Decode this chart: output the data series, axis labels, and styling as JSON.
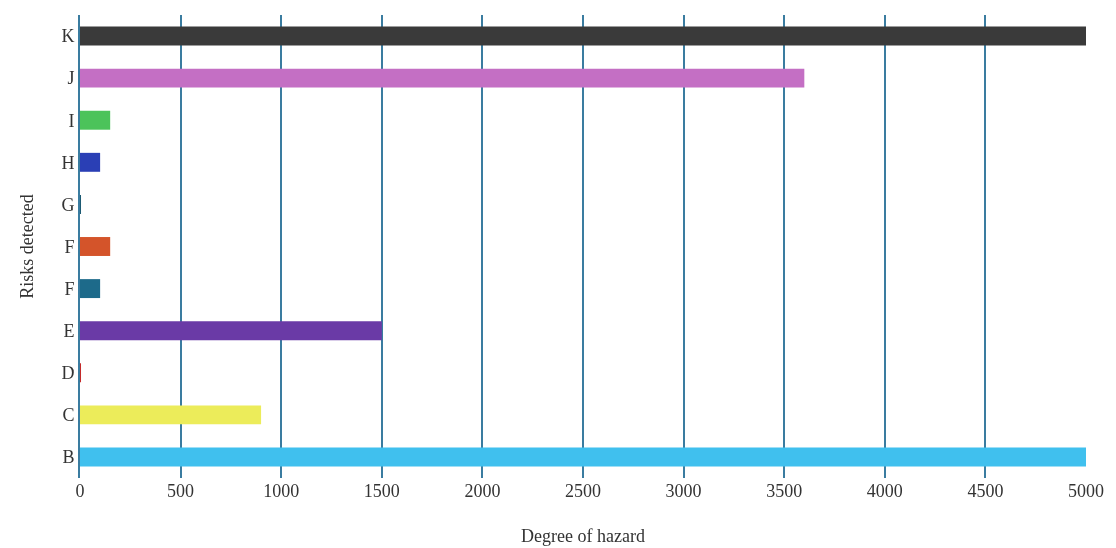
{
  "chart_data": {
    "type": "bar",
    "orientation": "horizontal",
    "xlabel": "Degree of hazard",
    "ylabel": "Risks detected",
    "categories": [
      "K",
      "J",
      "I",
      "H",
      "G",
      "F",
      "F",
      "E",
      "D",
      "C",
      "B"
    ],
    "values": [
      5000,
      3600,
      150,
      100,
      5,
      150,
      100,
      1500,
      5,
      900,
      5000
    ],
    "colors": [
      "#3a3a3a",
      "#c46fc4",
      "#4cc35a",
      "#2a3fb5",
      "#1c5a73",
      "#d4542a",
      "#1d6a8a",
      "#6a3aa6",
      "#c42a2a",
      "#ecec5a",
      "#40c0ee"
    ],
    "xlim": [
      0,
      5000
    ],
    "xticks": [
      0,
      500,
      1000,
      1500,
      2000,
      2500,
      3000,
      3500,
      4000,
      4500,
      5000
    ],
    "grid": "x"
  }
}
